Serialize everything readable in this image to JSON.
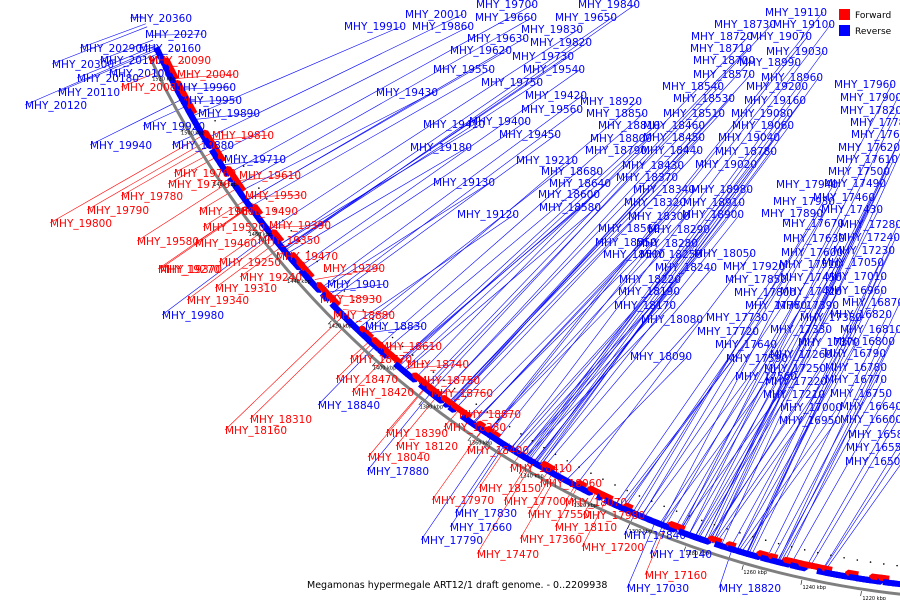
{
  "caption": "Megamonas hypermegale ART12/1 draft genome. - 0..2209938",
  "legend": [
    {
      "label": "Forward",
      "color": "#ff0000"
    },
    {
      "label": "Reverse",
      "color": "#0000ff"
    }
  ],
  "colors": {
    "forward": "#ff0000",
    "reverse": "#0000ff",
    "backbone": "#7f7f7f"
  },
  "ticks": [
    "1520 kbp",
    "1500 kbp",
    "1480 kbp",
    "1460 kbp",
    "1440 kbp",
    "1420 kbp",
    "1400 kbp",
    "1380 kbp",
    "1360 kbp",
    "1340 kbp",
    "1320 kbp",
    "1300 kbp",
    "1280 kbp",
    "1260 kbp",
    "1240 kbp",
    "1220 kbp"
  ],
  "labels": [
    {
      "t": "MHY_20360",
      "s": "r"
    },
    {
      "t": "MHY_20270",
      "s": "r"
    },
    {
      "t": "MHY_20290",
      "s": "r"
    },
    {
      "t": "MHY_20160",
      "s": "r"
    },
    {
      "t": "MHY_20300",
      "s": "r"
    },
    {
      "t": "MHY_20190",
      "s": "r"
    },
    {
      "t": "MHY_20090",
      "s": "f"
    },
    {
      "t": "MHY_20180",
      "s": "r"
    },
    {
      "t": "MHY_20100",
      "s": "r"
    },
    {
      "t": "MHY_20040",
      "s": "f"
    },
    {
      "t": "MHY_20080",
      "s": "f"
    },
    {
      "t": "MHY_20110",
      "s": "r"
    },
    {
      "t": "MHY_20120",
      "s": "r"
    },
    {
      "t": "MHY_19960",
      "s": "r"
    },
    {
      "t": "MHY_19950",
      "s": "r"
    },
    {
      "t": "MHY_19890",
      "s": "r"
    },
    {
      "t": "MHY_19920",
      "s": "r"
    },
    {
      "t": "MHY_19880",
      "s": "r"
    },
    {
      "t": "MHY_19940",
      "s": "r"
    },
    {
      "t": "MHY_19810",
      "s": "f"
    },
    {
      "t": "MHY_19710",
      "s": "r"
    },
    {
      "t": "MHY_19760",
      "s": "f"
    },
    {
      "t": "MHY_19610",
      "s": "f"
    },
    {
      "t": "MHY_19770",
      "s": "f"
    },
    {
      "t": "MHY_19780",
      "s": "f"
    },
    {
      "t": "MHY_19530",
      "s": "f"
    },
    {
      "t": "MHY_19790",
      "s": "f"
    },
    {
      "t": "MHY_19600",
      "s": "f"
    },
    {
      "t": "MHY_19490",
      "s": "f"
    },
    {
      "t": "MHY_19800",
      "s": "f"
    },
    {
      "t": "MHY_19520",
      "s": "f"
    },
    {
      "t": "MHY_19390",
      "s": "f"
    },
    {
      "t": "MHY_19580",
      "s": "f"
    },
    {
      "t": "MHY_19460",
      "s": "f"
    },
    {
      "t": "MHY_19350",
      "s": "f"
    },
    {
      "t": "MHY_19370",
      "s": "f"
    },
    {
      "t": "MHY_19250",
      "s": "f"
    },
    {
      "t": "MHY_19470",
      "s": "f"
    },
    {
      "t": "MHY_19270",
      "s": "f"
    },
    {
      "t": "MHY_19240",
      "s": "f"
    },
    {
      "t": "MHY_19290",
      "s": "f"
    },
    {
      "t": "MHY_19310",
      "s": "f"
    },
    {
      "t": "MHY_19340",
      "s": "f"
    },
    {
      "t": "MHY_19980",
      "s": "r"
    },
    {
      "t": "MHY_20010",
      "s": "r"
    },
    {
      "t": "MHY_19910",
      "s": "r"
    },
    {
      "t": "MHY_19860",
      "s": "r"
    },
    {
      "t": "MHY_19700",
      "s": "r"
    },
    {
      "t": "MHY_19840",
      "s": "r"
    },
    {
      "t": "MHY_19660",
      "s": "r"
    },
    {
      "t": "MHY_19650",
      "s": "r"
    },
    {
      "t": "MHY_19830",
      "s": "r"
    },
    {
      "t": "MHY_19630",
      "s": "r"
    },
    {
      "t": "MHY_19820",
      "s": "r"
    },
    {
      "t": "MHY_19620",
      "s": "r"
    },
    {
      "t": "MHY_19730",
      "s": "r"
    },
    {
      "t": "MHY_19550",
      "s": "r"
    },
    {
      "t": "MHY_19540",
      "s": "r"
    },
    {
      "t": "MHY_19750",
      "s": "r"
    },
    {
      "t": "MHY_19430",
      "s": "r"
    },
    {
      "t": "MHY_19420",
      "s": "r"
    },
    {
      "t": "MHY_19560",
      "s": "r"
    },
    {
      "t": "MHY_19410",
      "s": "r"
    },
    {
      "t": "MHY_19400",
      "s": "r"
    },
    {
      "t": "MHY_19450",
      "s": "r"
    },
    {
      "t": "MHY_19180",
      "s": "r"
    },
    {
      "t": "MHY_19210",
      "s": "r"
    },
    {
      "t": "MHY_19130",
      "s": "r"
    },
    {
      "t": "MHY_19120",
      "s": "r"
    },
    {
      "t": "MHY_19010",
      "s": "r"
    },
    {
      "t": "MHY_18930",
      "s": "f"
    },
    {
      "t": "MHY_18880",
      "s": "f"
    },
    {
      "t": "MHY_18830",
      "s": "r"
    },
    {
      "t": "MHY_18770",
      "s": "f"
    },
    {
      "t": "MHY_18610",
      "s": "f"
    },
    {
      "t": "MHY_18740",
      "s": "f"
    },
    {
      "t": "MHY_18470",
      "s": "f"
    },
    {
      "t": "MHY_18750",
      "s": "f"
    },
    {
      "t": "MHY_18420",
      "s": "f"
    },
    {
      "t": "MHY_18760",
      "s": "f"
    },
    {
      "t": "MHY_18840",
      "s": "r"
    },
    {
      "t": "MHY_18310",
      "s": "f"
    },
    {
      "t": "MHY_18870",
      "s": "f"
    },
    {
      "t": "MHY_18160",
      "s": "f"
    },
    {
      "t": "MHY_18380",
      "s": "f"
    },
    {
      "t": "MHY_18390",
      "s": "f"
    },
    {
      "t": "MHY_18120",
      "s": "f"
    },
    {
      "t": "MHY_18400",
      "s": "f"
    },
    {
      "t": "MHY_18040",
      "s": "f"
    },
    {
      "t": "MHY_18410",
      "s": "f"
    },
    {
      "t": "MHY_17880",
      "s": "r"
    },
    {
      "t": "MHY_18060",
      "s": "f"
    },
    {
      "t": "MHY_18150",
      "s": "f"
    },
    {
      "t": "MHY_17970",
      "s": "f"
    },
    {
      "t": "MHY_17700",
      "s": "f"
    },
    {
      "t": "MHY_18070",
      "s": "f"
    },
    {
      "t": "MHY_17830",
      "s": "r"
    },
    {
      "t": "MHY_17550",
      "s": "f"
    },
    {
      "t": "MHY_17980",
      "s": "f"
    },
    {
      "t": "MHY_17660",
      "s": "r"
    },
    {
      "t": "MHY_18110",
      "s": "f"
    },
    {
      "t": "MHY_17790",
      "s": "r"
    },
    {
      "t": "MHY_17360",
      "s": "f"
    },
    {
      "t": "MHY_17840",
      "s": "r"
    },
    {
      "t": "MHY_17470",
      "s": "f"
    },
    {
      "t": "MHY_17200",
      "s": "f"
    },
    {
      "t": "MHY_17140",
      "s": "r"
    },
    {
      "t": "MHY_17160",
      "s": "f"
    },
    {
      "t": "MHY_17030",
      "s": "r"
    },
    {
      "t": "MHY_18820",
      "s": "r"
    },
    {
      "t": "MHY_19110",
      "s": "r"
    },
    {
      "t": "MHY_18730",
      "s": "r"
    },
    {
      "t": "MHY_19100",
      "s": "r"
    },
    {
      "t": "MHY_18720",
      "s": "r"
    },
    {
      "t": "MHY_19070",
      "s": "r"
    },
    {
      "t": "MHY_18710",
      "s": "r"
    },
    {
      "t": "MHY_19030",
      "s": "r"
    },
    {
      "t": "MHY_18700",
      "s": "r"
    },
    {
      "t": "MHY_18990",
      "s": "r"
    },
    {
      "t": "MHY_18570",
      "s": "r"
    },
    {
      "t": "MHY_18960",
      "s": "r"
    },
    {
      "t": "MHY_18540",
      "s": "r"
    },
    {
      "t": "MHY_19200",
      "s": "r"
    },
    {
      "t": "MHY_18920",
      "s": "r"
    },
    {
      "t": "MHY_18530",
      "s": "r"
    },
    {
      "t": "MHY_19160",
      "s": "r"
    },
    {
      "t": "MHY_18850",
      "s": "r"
    },
    {
      "t": "MHY_18510",
      "s": "r"
    },
    {
      "t": "MHY_19080",
      "s": "r"
    },
    {
      "t": "MHY_18810",
      "s": "r"
    },
    {
      "t": "MHY_18460",
      "s": "r"
    },
    {
      "t": "MHY_19060",
      "s": "r"
    },
    {
      "t": "MHY_18800",
      "s": "r"
    },
    {
      "t": "MHY_18450",
      "s": "r"
    },
    {
      "t": "MHY_19040",
      "s": "r"
    },
    {
      "t": "MHY_18790",
      "s": "r"
    },
    {
      "t": "MHY_18440",
      "s": "r"
    },
    {
      "t": "MHY_18780",
      "s": "r"
    },
    {
      "t": "MHY_18430",
      "s": "r"
    },
    {
      "t": "MHY_19020",
      "s": "r"
    },
    {
      "t": "MHY_18680",
      "s": "r"
    },
    {
      "t": "MHY_18370",
      "s": "r"
    },
    {
      "t": "MHY_18980",
      "s": "r"
    },
    {
      "t": "MHY_18640",
      "s": "r"
    },
    {
      "t": "MHY_18340",
      "s": "r"
    },
    {
      "t": "MHY_18910",
      "s": "r"
    },
    {
      "t": "MHY_18600",
      "s": "r"
    },
    {
      "t": "MHY_18320",
      "s": "r"
    },
    {
      "t": "MHY_18900",
      "s": "r"
    },
    {
      "t": "MHY_18580",
      "s": "r"
    },
    {
      "t": "MHY_18300",
      "s": "r"
    },
    {
      "t": "MHY_18560",
      "s": "r"
    },
    {
      "t": "MHY_18290",
      "s": "r"
    },
    {
      "t": "MHY_18550",
      "s": "r"
    },
    {
      "t": "MHY_18280",
      "s": "r"
    },
    {
      "t": "MHY_18500",
      "s": "r"
    },
    {
      "t": "MHY_18250",
      "s": "r"
    },
    {
      "t": "MHY_18240",
      "s": "r"
    },
    {
      "t": "MHY_18050",
      "s": "r"
    },
    {
      "t": "MHY_18220",
      "s": "r"
    },
    {
      "t": "MHY_17920",
      "s": "r"
    },
    {
      "t": "MHY_18190",
      "s": "r"
    },
    {
      "t": "MHY_17850",
      "s": "r"
    },
    {
      "t": "MHY_18170",
      "s": "r"
    },
    {
      "t": "MHY_17800",
      "s": "r"
    },
    {
      "t": "MHY_18080",
      "s": "r"
    },
    {
      "t": "MHY_17760",
      "s": "r"
    },
    {
      "t": "MHY_17730",
      "s": "r"
    },
    {
      "t": "MHY_17720",
      "s": "r"
    },
    {
      "t": "MHY_18090",
      "s": "r"
    },
    {
      "t": "MHY_17640",
      "s": "r"
    },
    {
      "t": "MHY_17590",
      "s": "r"
    },
    {
      "t": "MHY_17560",
      "s": "r"
    },
    {
      "t": "MHY_17960",
      "s": "r"
    },
    {
      "t": "MHY_17900",
      "s": "r"
    },
    {
      "t": "MHY_17820",
      "s": "r"
    },
    {
      "t": "MHY_17780",
      "s": "r"
    },
    {
      "t": "MHY_17680",
      "s": "r"
    },
    {
      "t": "MHY_17620",
      "s": "r"
    },
    {
      "t": "MHY_17610",
      "s": "r"
    },
    {
      "t": "MHY_17500",
      "s": "r"
    },
    {
      "t": "MHY_17940",
      "s": "r"
    },
    {
      "t": "MHY_17490",
      "s": "r"
    },
    {
      "t": "MHY_17930",
      "s": "r"
    },
    {
      "t": "MHY_17460",
      "s": "r"
    },
    {
      "t": "MHY_17890",
      "s": "r"
    },
    {
      "t": "MHY_17430",
      "s": "r"
    },
    {
      "t": "MHY_17670",
      "s": "r"
    },
    {
      "t": "MHY_17280",
      "s": "r"
    },
    {
      "t": "MHY_17630",
      "s": "r"
    },
    {
      "t": "MHY_17240",
      "s": "r"
    },
    {
      "t": "MHY_17600",
      "s": "r"
    },
    {
      "t": "MHY_17230",
      "s": "r"
    },
    {
      "t": "MHY_17510",
      "s": "r"
    },
    {
      "t": "MHY_17050",
      "s": "r"
    },
    {
      "t": "MHY_17450",
      "s": "r"
    },
    {
      "t": "MHY_17010",
      "s": "r"
    },
    {
      "t": "MHY_17420",
      "s": "r"
    },
    {
      "t": "MHY_16960",
      "s": "r"
    },
    {
      "t": "MHY_17390",
      "s": "r"
    },
    {
      "t": "MHY_16870",
      "s": "r"
    },
    {
      "t": "MHY_17380",
      "s": "r"
    },
    {
      "t": "MHY_16820",
      "s": "r"
    },
    {
      "t": "MHY_17330",
      "s": "r"
    },
    {
      "t": "MHY_16810",
      "s": "r"
    },
    {
      "t": "MHY_17370",
      "s": "r"
    },
    {
      "t": "MHY_16800",
      "s": "r"
    },
    {
      "t": "MHY_17260",
      "s": "r"
    },
    {
      "t": "MHY_16790",
      "s": "r"
    },
    {
      "t": "MHY_17250",
      "s": "r"
    },
    {
      "t": "MHY_16780",
      "s": "r"
    },
    {
      "t": "MHY_17220",
      "s": "r"
    },
    {
      "t": "MHY_16770",
      "s": "r"
    },
    {
      "t": "MHY_17210",
      "s": "r"
    },
    {
      "t": "MHY_16750",
      "s": "r"
    },
    {
      "t": "MHY_17000",
      "s": "r"
    },
    {
      "t": "MHY_16640",
      "s": "r"
    },
    {
      "t": "MHY_16950",
      "s": "r"
    },
    {
      "t": "MHY_16600",
      "s": "r"
    },
    {
      "t": "MHY_16580",
      "s": "r"
    },
    {
      "t": "MHY_16550",
      "s": "r"
    },
    {
      "t": "MHY_16500",
      "s": "r"
    }
  ]
}
